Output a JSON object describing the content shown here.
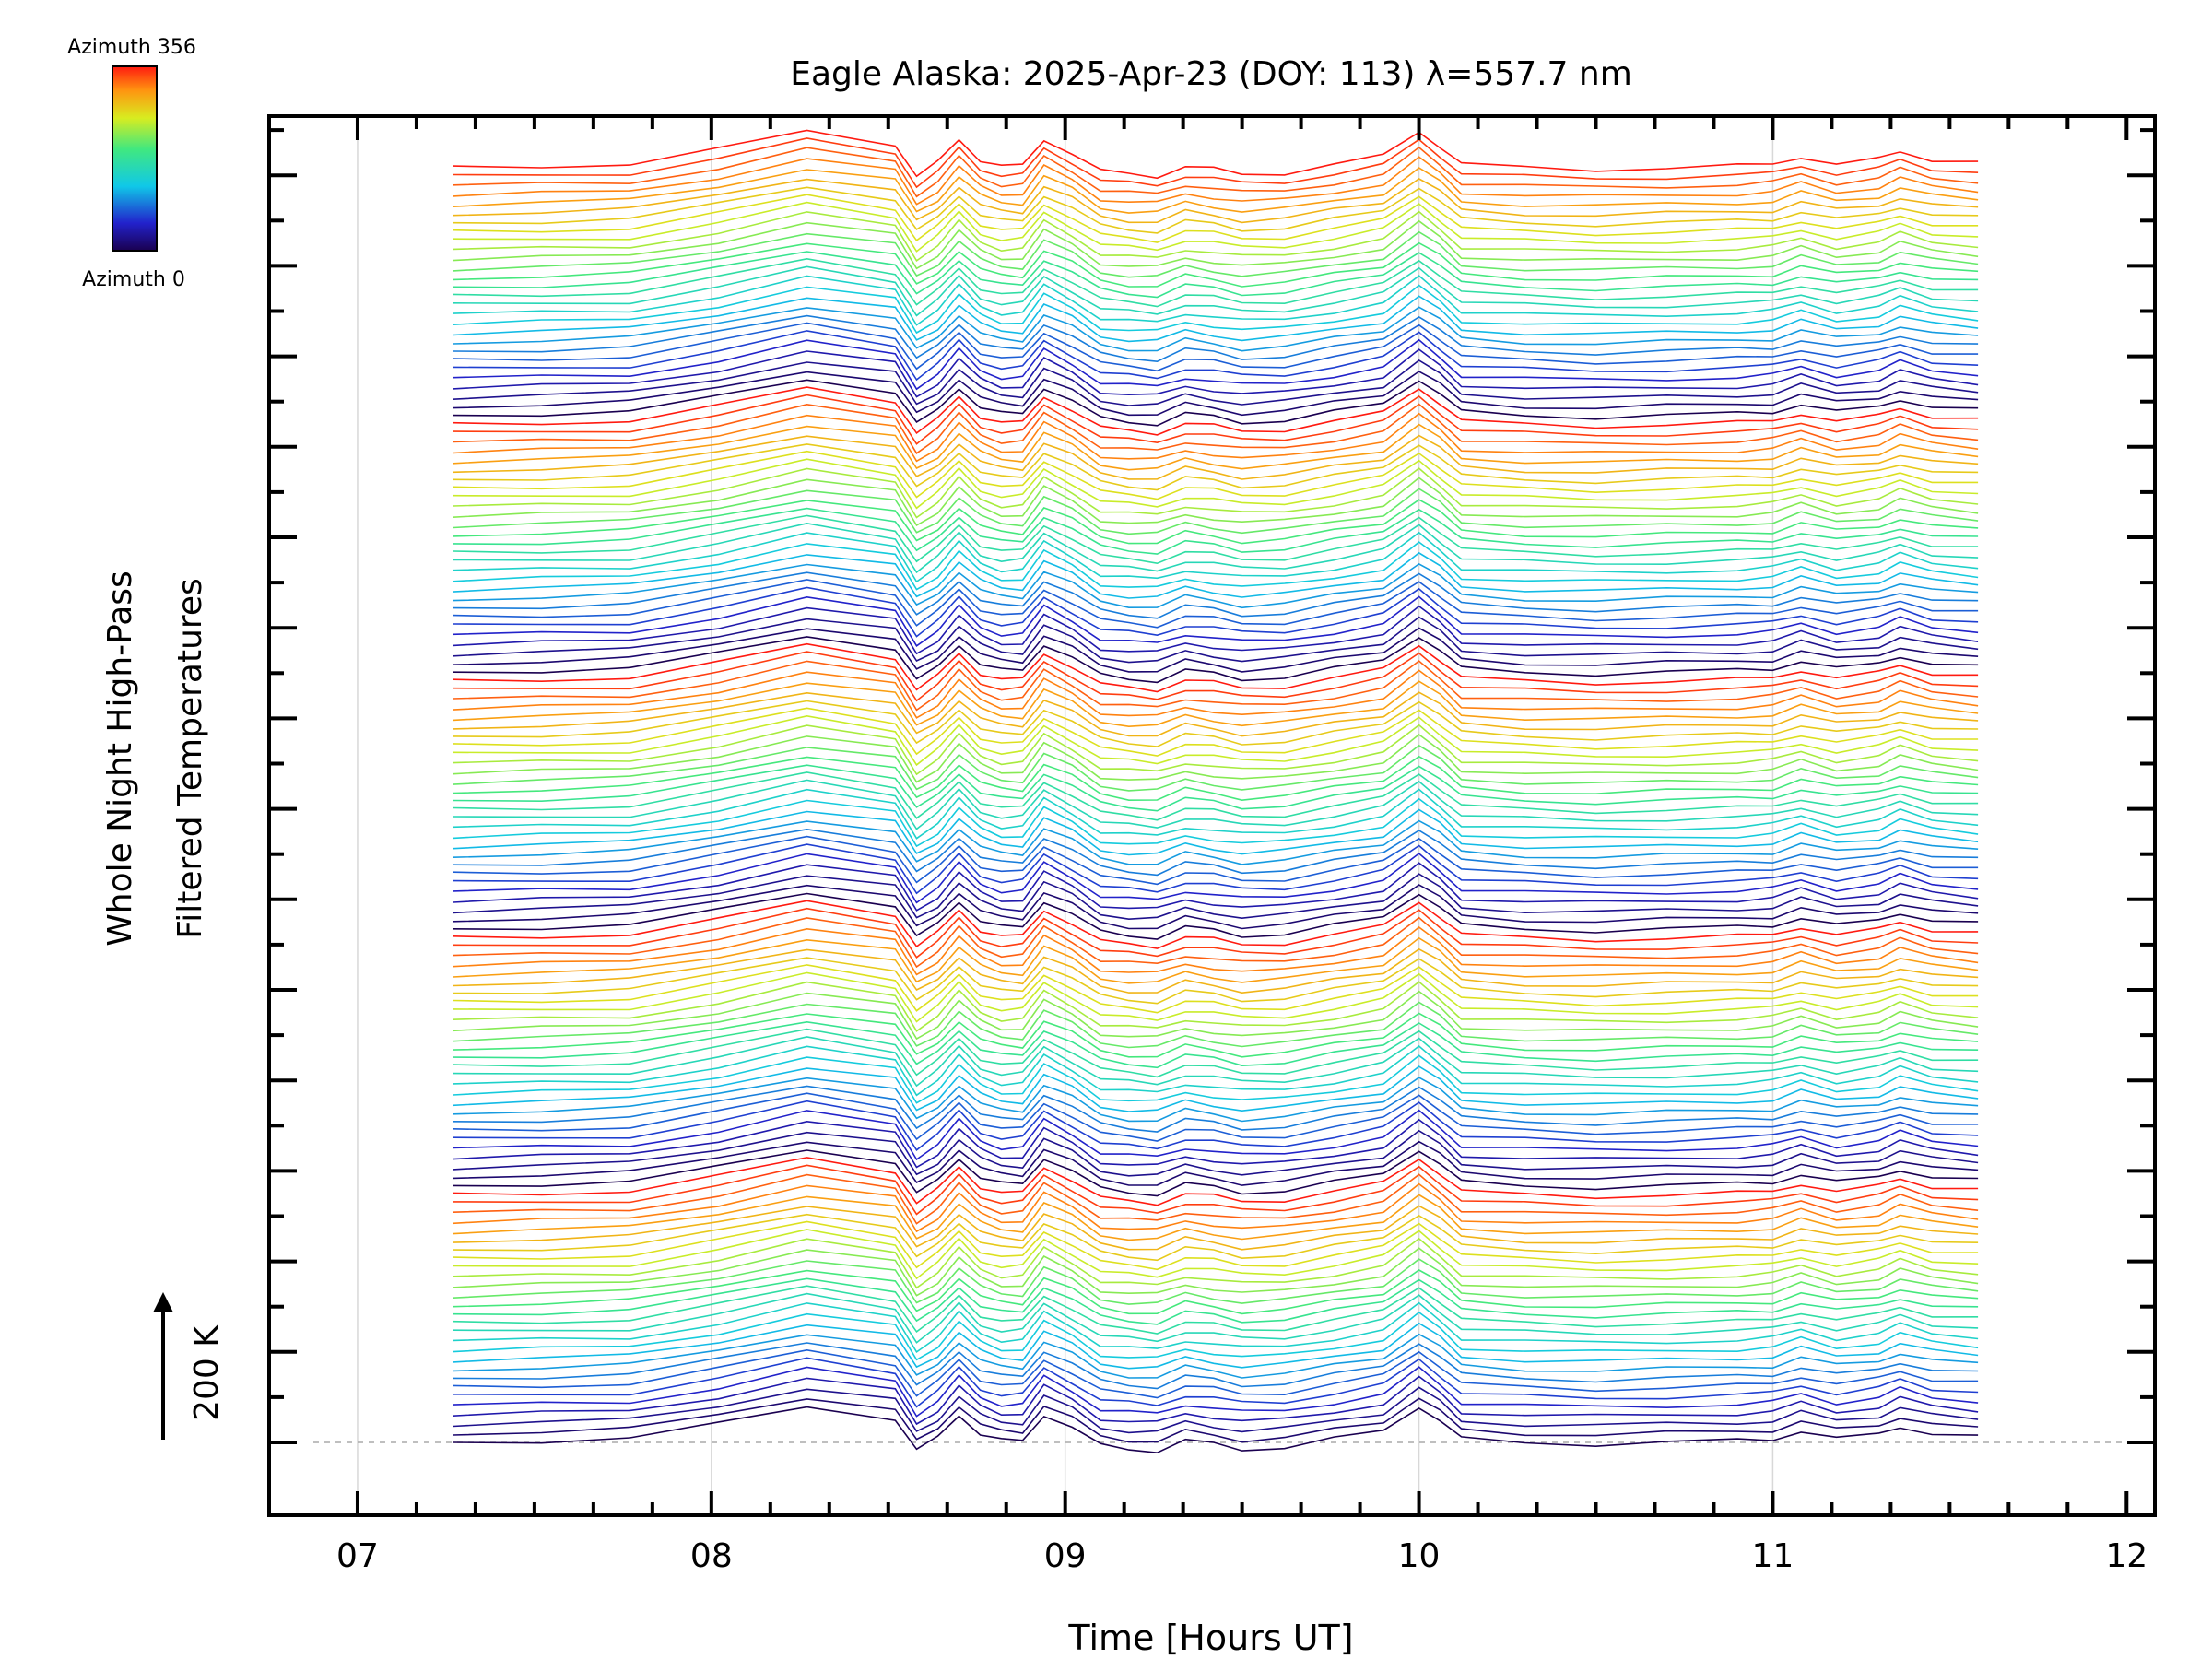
{
  "chart_data": {
    "type": "line",
    "title": "Eagle Alaska: 2025-Apr-23 (DOY: 113) λ=557.7 nm",
    "xlabel": "Time [Hours UT]",
    "ylabel_line1": "Whole Night High-Pass",
    "ylabel_line2": "Filtered Temperatures",
    "scale_label": "200 K",
    "xlim": [
      6.75,
      12.08
    ],
    "x_ticks": [
      "07",
      "08",
      "09",
      "10",
      "11",
      "12"
    ],
    "x_tick_values": [
      7,
      8,
      9,
      10,
      11,
      12
    ],
    "y_major_ticks": 15,
    "grid": "vertical at whole hours",
    "colorbar": {
      "top_label": "Azimuth 356",
      "bottom_label": "Azimuth 0"
    },
    "time_hours": [
      7.27,
      7.52,
      7.77,
      8.02,
      8.27,
      8.52,
      8.58,
      8.64,
      8.7,
      8.76,
      8.82,
      8.88,
      8.94,
      9.02,
      9.1,
      9.18,
      9.26,
      9.34,
      9.42,
      9.5,
      9.62,
      9.76,
      9.9,
      10.0,
      10.06,
      10.12,
      10.3,
      10.5,
      10.7,
      10.9,
      11.0,
      11.08,
      11.18,
      11.3,
      11.36,
      11.45,
      11.58
    ],
    "base_profile": [
      0.0,
      0.05,
      0.12,
      0.55,
      1.1,
      0.72,
      -0.25,
      0.15,
      0.85,
      0.25,
      0.05,
      0.05,
      0.85,
      0.45,
      -0.1,
      -0.2,
      -0.25,
      0.05,
      -0.05,
      -0.2,
      -0.15,
      0.1,
      0.35,
      1.1,
      0.65,
      0.1,
      0.0,
      -0.05,
      0.0,
      0.05,
      0.1,
      0.35,
      0.1,
      0.25,
      0.5,
      0.25,
      0.15
    ],
    "series_groups": 5,
    "series_per_group": 28,
    "series_spacing_K": 18,
    "series_count": 140,
    "stack_note": "Curves are vertically offset stacks ordered by azimuth (0 → 356), repeated in 5 groups; colour indicates azimuth."
  }
}
